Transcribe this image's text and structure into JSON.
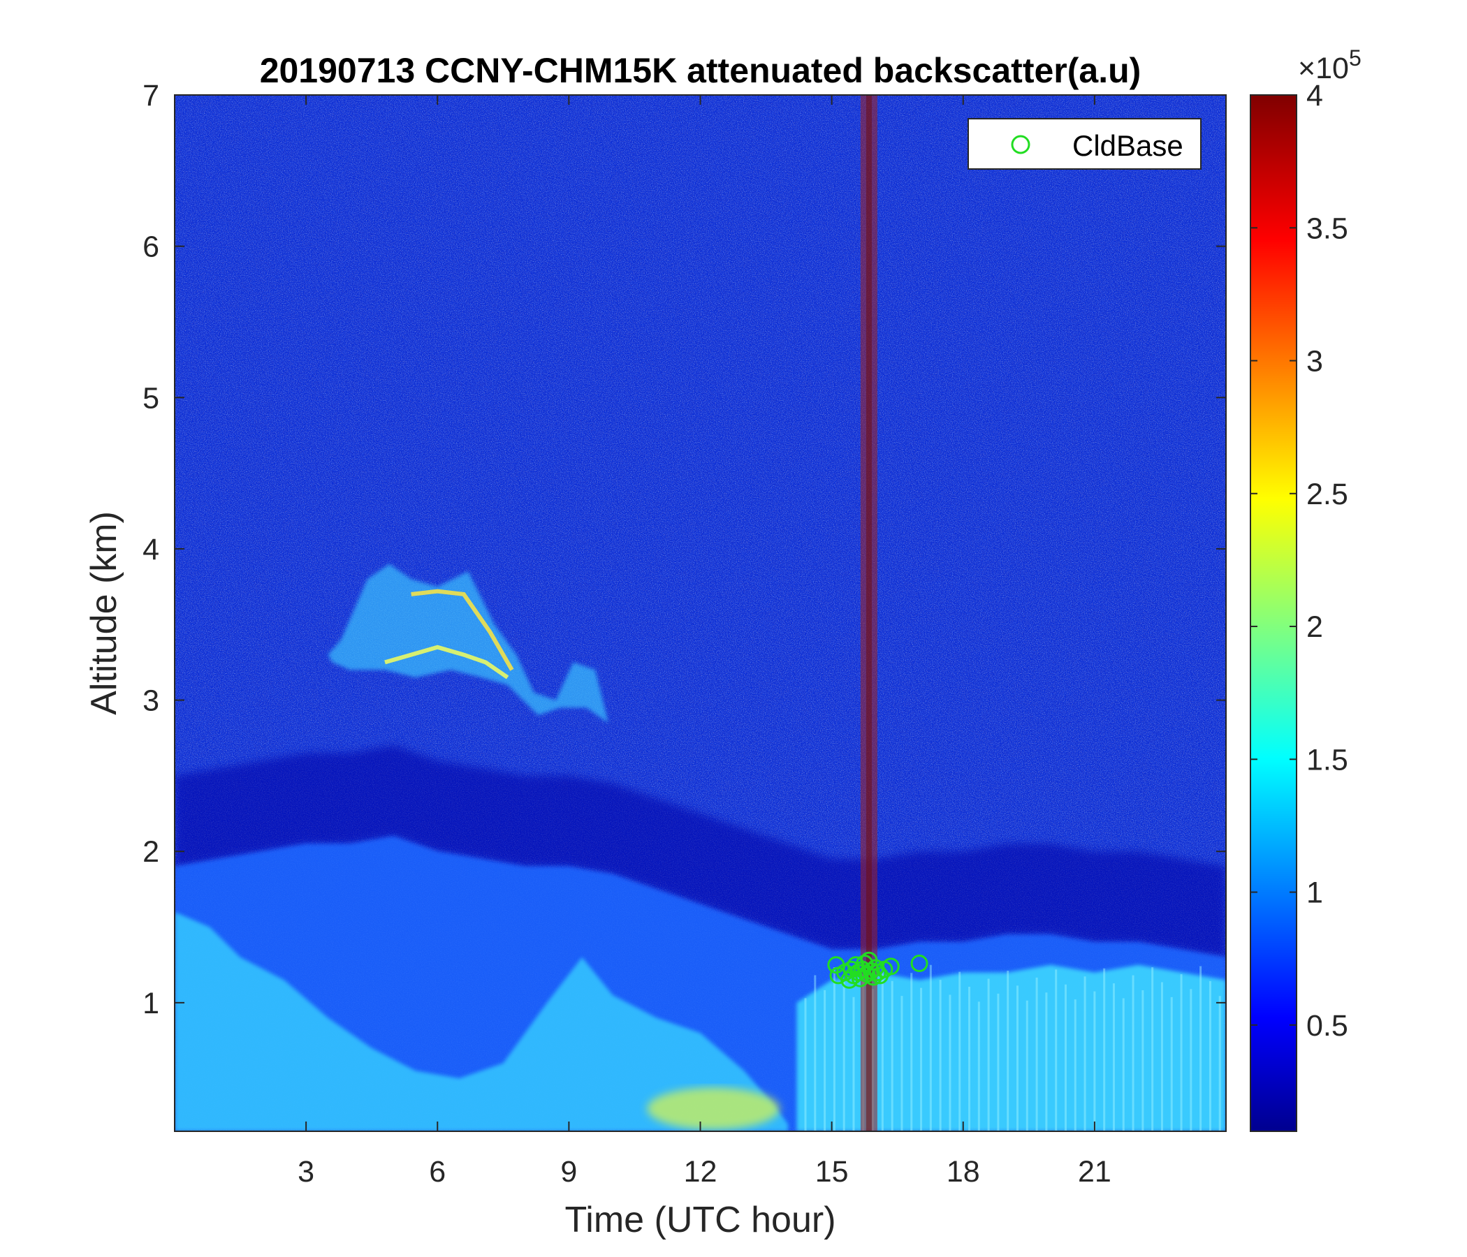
{
  "chart_data": {
    "type": "heatmap",
    "title": "20190713 CCNY-CHM15K attenuated backscatter(a.u)",
    "xlabel": "Time (UTC hour)",
    "ylabel": "Altitude (km)",
    "xlim": [
      0,
      24
    ],
    "ylim": [
      0.15,
      7
    ],
    "xticks": [
      3,
      6,
      9,
      12,
      15,
      18,
      21
    ],
    "yticks": [
      1,
      2,
      3,
      4,
      5,
      6,
      7
    ],
    "colormap": "jet",
    "colorbar": {
      "range": [
        0.1,
        4
      ],
      "ticks": [
        0.5,
        1,
        1.5,
        2,
        2.5,
        3,
        3.5,
        4
      ],
      "tick_labels": [
        "0.5",
        "1",
        "1.5",
        "2",
        "2.5",
        "3",
        "3.5",
        "4"
      ],
      "multiplier_base": "×10",
      "multiplier_exponent": "5"
    },
    "grid": false,
    "legend": {
      "placement": "top-right",
      "entries": [
        "CldBase"
      ]
    },
    "series": [
      {
        "name": "CldBase",
        "marker": "circle",
        "color": "#22dd22",
        "x": [
          15.1,
          15.15,
          15.3,
          15.4,
          15.45,
          15.5,
          15.55,
          15.6,
          15.65,
          15.7,
          15.75,
          15.8,
          15.85,
          15.9,
          15.95,
          16.0,
          16.05,
          16.1,
          16.2,
          16.35,
          17.0
        ],
        "y": [
          1.25,
          1.18,
          1.2,
          1.15,
          1.22,
          1.18,
          1.25,
          1.2,
          1.16,
          1.22,
          1.26,
          1.19,
          1.28,
          1.21,
          1.17,
          1.23,
          1.2,
          1.18,
          1.22,
          1.24,
          1.26
        ]
      }
    ],
    "features": {
      "surface_layer_top_km": {
        "x": [
          0,
          1,
          2,
          3,
          4,
          5,
          6,
          7,
          8,
          9,
          10,
          11,
          12,
          13,
          14,
          15,
          16,
          17,
          18,
          19,
          20,
          21,
          22,
          23,
          24
        ],
        "y": [
          1.9,
          1.95,
          2.0,
          2.05,
          2.05,
          2.1,
          2.0,
          1.95,
          1.9,
          1.9,
          1.85,
          1.75,
          1.65,
          1.55,
          1.45,
          1.35,
          1.35,
          1.4,
          1.4,
          1.45,
          1.45,
          1.4,
          1.4,
          1.35,
          1.3
        ]
      },
      "elevated_aerosol_layer": {
        "x_range": [
          3.5,
          10
        ],
        "y_range": [
          2.9,
          3.9
        ]
      },
      "noise_column_hour": 15.85
    }
  }
}
